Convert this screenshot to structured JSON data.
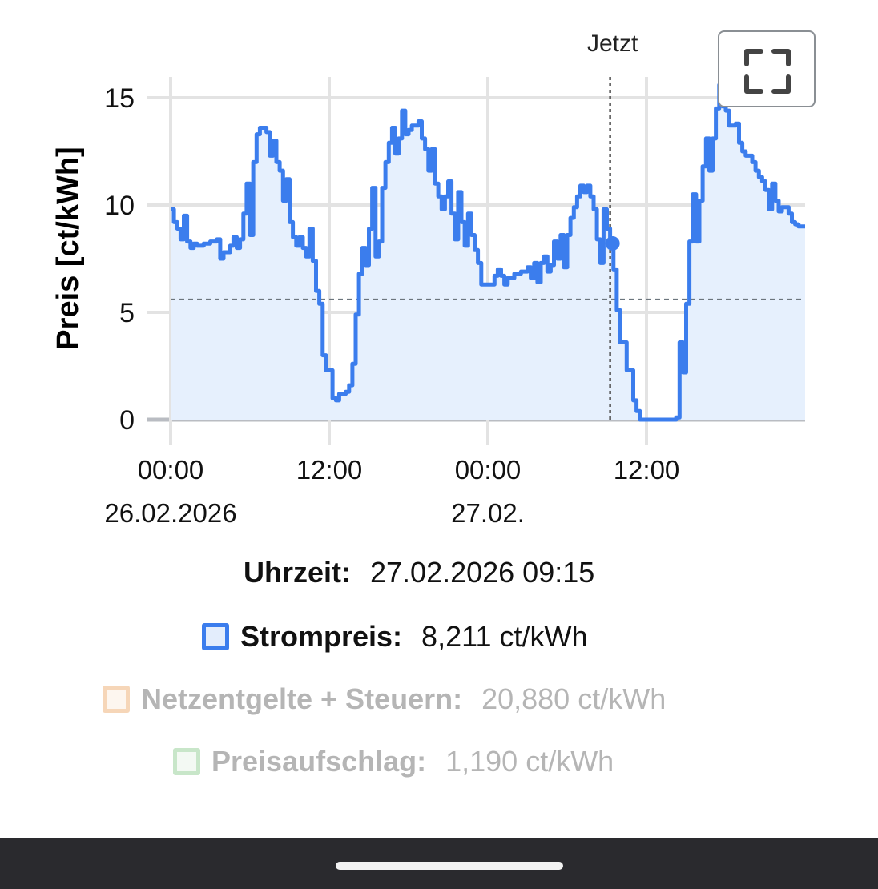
{
  "chart_data": {
    "type": "line",
    "step": true,
    "filled": true,
    "ylabel": "Preis [ct/kWh]",
    "ylim": [
      0,
      16.5
    ],
    "yticks": [
      0,
      5,
      10,
      15
    ],
    "xlim": [
      0,
      48
    ],
    "xticks": [
      {
        "x": 0,
        "time": "00:00",
        "date": "26.02.2026"
      },
      {
        "x": 12,
        "time": "12:00",
        "date": ""
      },
      {
        "x": 24,
        "time": "00:00",
        "date": "27.02."
      },
      {
        "x": 36,
        "time": "12:00",
        "date": ""
      }
    ],
    "now": {
      "x": 33.25,
      "label": "Jetzt"
    },
    "reference_line": 5.6,
    "hover_point": {
      "x": 33.25,
      "y": 8.211
    },
    "grid": true,
    "series": [
      {
        "name": "Strompreis",
        "color": "#3b7ded",
        "points": [
          [
            0,
            9.8
          ],
          [
            0.25,
            9.2
          ],
          [
            0.5,
            8.9
          ],
          [
            0.75,
            8.4
          ],
          [
            1,
            9.5
          ],
          [
            1.25,
            8.3
          ],
          [
            1.5,
            8.0
          ],
          [
            1.75,
            8.2
          ],
          [
            2,
            8.1
          ],
          [
            2.5,
            8.2
          ],
          [
            3,
            8.3
          ],
          [
            3.5,
            8.4
          ],
          [
            3.75,
            7.5
          ],
          [
            4,
            7.8
          ],
          [
            4.5,
            8.1
          ],
          [
            4.75,
            8.5
          ],
          [
            5,
            8.0
          ],
          [
            5.25,
            8.4
          ],
          [
            5.5,
            9.6
          ],
          [
            5.75,
            11.0
          ],
          [
            6,
            8.6
          ],
          [
            6.25,
            12.0
          ],
          [
            6.5,
            13.3
          ],
          [
            6.75,
            13.6
          ],
          [
            7.25,
            13.4
          ],
          [
            7.5,
            12.3
          ],
          [
            7.75,
            13.0
          ],
          [
            8,
            12.0
          ],
          [
            8.25,
            11.6
          ],
          [
            8.5,
            10.2
          ],
          [
            8.75,
            11.2
          ],
          [
            9,
            9.2
          ],
          [
            9.25,
            8.5
          ],
          [
            9.5,
            8.1
          ],
          [
            9.75,
            8.5
          ],
          [
            10,
            8.0
          ],
          [
            10.25,
            7.6
          ],
          [
            10.5,
            8.9
          ],
          [
            10.75,
            7.4
          ],
          [
            11,
            6.0
          ],
          [
            11.25,
            5.4
          ],
          [
            11.5,
            3.0
          ],
          [
            11.75,
            2.3
          ],
          [
            12.25,
            1.0
          ],
          [
            12.5,
            0.9
          ],
          [
            12.75,
            1.2
          ],
          [
            13.25,
            1.3
          ],
          [
            13.5,
            1.6
          ],
          [
            13.75,
            2.6
          ],
          [
            14,
            4.9
          ],
          [
            14.25,
            6.8
          ],
          [
            14.5,
            8.0
          ],
          [
            14.75,
            7.2
          ],
          [
            15,
            8.9
          ],
          [
            15.25,
            10.8
          ],
          [
            15.5,
            7.6
          ],
          [
            15.75,
            8.3
          ],
          [
            16,
            10.8
          ],
          [
            16.25,
            12.0
          ],
          [
            16.5,
            12.9
          ],
          [
            16.75,
            13.6
          ],
          [
            17,
            12.4
          ],
          [
            17.25,
            13.1
          ],
          [
            17.5,
            14.4
          ],
          [
            17.75,
            13.3
          ],
          [
            18,
            13.5
          ],
          [
            18.25,
            13.7
          ],
          [
            18.75,
            13.9
          ],
          [
            19,
            13.1
          ],
          [
            19.25,
            12.6
          ],
          [
            19.5,
            11.6
          ],
          [
            19.75,
            12.6
          ],
          [
            20,
            11.0
          ],
          [
            20.25,
            10.4
          ],
          [
            20.5,
            9.8
          ],
          [
            20.75,
            10.4
          ],
          [
            21,
            11.1
          ],
          [
            21.25,
            9.6
          ],
          [
            21.5,
            8.4
          ],
          [
            21.75,
            10.6
          ],
          [
            22,
            9.2
          ],
          [
            22.25,
            8.1
          ],
          [
            22.5,
            9.6
          ],
          [
            22.75,
            8.6
          ],
          [
            23,
            7.9
          ],
          [
            23.25,
            7.3
          ],
          [
            23.5,
            6.3
          ],
          [
            24.5,
            6.7
          ],
          [
            24.75,
            7.0
          ],
          [
            25,
            6.7
          ],
          [
            25.25,
            6.3
          ],
          [
            25.5,
            6.6
          ],
          [
            26,
            6.8
          ],
          [
            26.5,
            6.9
          ],
          [
            27,
            7.1
          ],
          [
            27.25,
            6.6
          ],
          [
            27.5,
            7.3
          ],
          [
            27.75,
            6.4
          ],
          [
            28,
            7.3
          ],
          [
            28.25,
            7.6
          ],
          [
            28.5,
            6.9
          ],
          [
            28.75,
            7.2
          ],
          [
            29,
            8.3
          ],
          [
            29.25,
            7.5
          ],
          [
            29.5,
            8.6
          ],
          [
            29.75,
            7.1
          ],
          [
            30,
            8.6
          ],
          [
            30.25,
            9.4
          ],
          [
            30.5,
            9.9
          ],
          [
            30.75,
            10.4
          ],
          [
            31,
            10.9
          ],
          [
            31.25,
            10.6
          ],
          [
            31.5,
            10.9
          ],
          [
            31.75,
            10.4
          ],
          [
            32,
            9.8
          ],
          [
            32.25,
            8.4
          ],
          [
            32.5,
            7.3
          ],
          [
            32.75,
            9.8
          ],
          [
            33,
            8.9
          ],
          [
            33.25,
            8.2
          ],
          [
            33.5,
            7.0
          ],
          [
            33.75,
            5.1
          ],
          [
            34,
            3.6
          ],
          [
            34.5,
            2.3
          ],
          [
            35,
            0.9
          ],
          [
            35.25,
            0.4
          ],
          [
            35.5,
            0.0
          ],
          [
            38.25,
            0.1
          ],
          [
            38.5,
            3.6
          ],
          [
            38.75,
            2.2
          ],
          [
            39,
            5.4
          ],
          [
            39.25,
            8.3
          ],
          [
            39.5,
            10.5
          ],
          [
            39.75,
            8.3
          ],
          [
            40,
            10.2
          ],
          [
            40.25,
            11.8
          ],
          [
            40.5,
            13.1
          ],
          [
            40.75,
            11.6
          ],
          [
            41,
            13.1
          ],
          [
            41.25,
            14.5
          ],
          [
            41.5,
            15.6
          ],
          [
            41.75,
            14.6
          ],
          [
            42,
            14.4
          ],
          [
            42.25,
            13.7
          ],
          [
            42.75,
            13.8
          ],
          [
            43,
            12.9
          ],
          [
            43.25,
            12.5
          ],
          [
            43.5,
            12.3
          ],
          [
            44,
            12.0
          ],
          [
            44.25,
            11.6
          ],
          [
            44.5,
            11.3
          ],
          [
            44.75,
            11.1
          ],
          [
            45,
            10.7
          ],
          [
            45.25,
            9.8
          ],
          [
            45.5,
            11.0
          ],
          [
            45.75,
            10.2
          ],
          [
            46,
            9.7
          ],
          [
            46.25,
            9.9
          ],
          [
            46.75,
            9.6
          ],
          [
            47,
            9.2
          ],
          [
            47.25,
            9.1
          ],
          [
            47.5,
            9.0
          ]
        ]
      }
    ]
  },
  "fullscreen_icon": "fullscreen-icon",
  "tooltip": {
    "time_label": "Uhrzeit:",
    "time_value": "27.02.2026 09:15",
    "rows": [
      {
        "label": "Strompreis:",
        "value": "8,211 ct/kWh",
        "color": "#3b7ded",
        "fill": "#e3edfc",
        "active": true
      },
      {
        "label": "Netzentgelte + Steuern:",
        "value": "20,880 ct/kWh",
        "color": "#f6d6b8",
        "fill": "#fdf6ef",
        "active": false
      },
      {
        "label": "Preisaufschlag:",
        "value": "1,190 ct/kWh",
        "color": "#c8e6c9",
        "fill": "#f3f9f3",
        "active": false
      }
    ]
  }
}
